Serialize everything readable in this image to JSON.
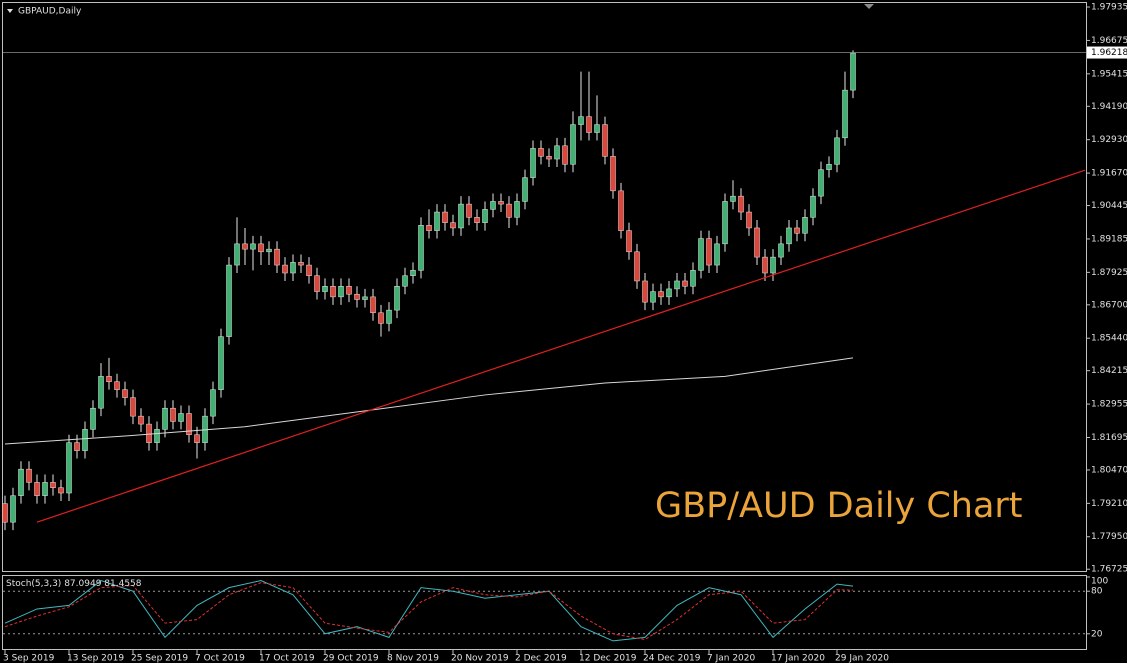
{
  "chart_data": [
    {
      "type": "candlestick",
      "title": "GBPAUD,Daily",
      "annotation": "GBP/AUD Daily Chart",
      "categories": [
        "3 Sep 2019",
        null,
        null,
        null,
        null,
        null,
        null,
        null,
        "13 Sep 2019",
        null,
        null,
        null,
        null,
        null,
        null,
        null,
        "25 Sep 2019",
        null,
        null,
        null,
        null,
        null,
        null,
        null,
        "7 Oct 2019",
        null,
        null,
        null,
        null,
        null,
        null,
        null,
        "17 Oct 2019",
        null,
        null,
        null,
        null,
        null,
        null,
        null,
        "29 Oct 2019",
        null,
        null,
        null,
        null,
        null,
        null,
        null,
        "8 Nov 2019",
        null,
        null,
        null,
        null,
        null,
        null,
        null,
        "20 Nov 2019",
        null,
        null,
        null,
        null,
        null,
        null,
        null,
        "2 Dec 2019",
        null,
        null,
        null,
        null,
        null,
        null,
        null,
        "12 Dec 2019",
        null,
        null,
        null,
        null,
        null,
        null,
        null,
        "24 Dec 2019",
        null,
        null,
        null,
        null,
        null,
        null,
        null,
        "7 Jan 2020",
        null,
        null,
        null,
        null,
        null,
        null,
        null,
        "17 Jan 2020",
        null,
        null,
        null,
        null,
        null,
        null,
        null,
        "29 Jan 2020",
        null,
        null
      ],
      "open": [
        1.792,
        1.785,
        1.795,
        1.805,
        1.8,
        1.795,
        1.8,
        1.798,
        1.796,
        1.815,
        1.812,
        1.82,
        1.828,
        1.84,
        1.838,
        1.835,
        1.832,
        1.825,
        1.822,
        1.815,
        1.82,
        1.828,
        1.823,
        1.826,
        1.818,
        1.815,
        1.825,
        1.835,
        1.855,
        1.882,
        1.89,
        1.888,
        1.89,
        1.887,
        1.888,
        1.882,
        1.879,
        1.883,
        1.882,
        1.878,
        1.872,
        1.874,
        1.87,
        1.874,
        1.871,
        1.869,
        1.87,
        1.864,
        1.86,
        1.865,
        1.874,
        1.878,
        1.88,
        1.897,
        1.895,
        1.902,
        1.898,
        1.896,
        1.905,
        1.9,
        1.898,
        1.903,
        1.906,
        1.905,
        1.9,
        1.906,
        1.915,
        1.926,
        1.923,
        1.922,
        1.927,
        1.92,
        1.935,
        1.938,
        1.932,
        1.935,
        1.923,
        1.91,
        1.895,
        1.887,
        1.876,
        1.868,
        1.872,
        1.87,
        1.873,
        1.876,
        1.874,
        1.88,
        1.892,
        1.882,
        1.89,
        1.906,
        1.908,
        1.902,
        1.896,
        1.885,
        1.879,
        1.885,
        1.89,
        1.896,
        1.894,
        1.9,
        1.908,
        1.918,
        1.92,
        1.93,
        1.948
      ],
      "high": [
        1.795,
        1.798,
        1.808,
        1.808,
        1.803,
        1.803,
        1.803,
        1.801,
        1.818,
        1.818,
        1.823,
        1.831,
        1.845,
        1.847,
        1.841,
        1.838,
        1.835,
        1.828,
        1.825,
        1.823,
        1.831,
        1.831,
        1.829,
        1.829,
        1.821,
        1.828,
        1.838,
        1.858,
        1.885,
        1.9,
        1.896,
        1.893,
        1.893,
        1.891,
        1.891,
        1.885,
        1.886,
        1.886,
        1.885,
        1.881,
        1.877,
        1.877,
        1.877,
        1.877,
        1.874,
        1.873,
        1.873,
        1.867,
        1.868,
        1.877,
        1.881,
        1.883,
        1.9,
        1.903,
        1.905,
        1.905,
        1.901,
        1.908,
        1.908,
        1.903,
        1.906,
        1.909,
        1.909,
        1.908,
        1.909,
        1.918,
        1.929,
        1.929,
        1.926,
        1.93,
        1.93,
        1.94,
        1.955,
        1.955,
        1.946,
        1.938,
        1.926,
        1.913,
        1.898,
        1.89,
        1.879,
        1.875,
        1.875,
        1.876,
        1.879,
        1.879,
        1.883,
        1.895,
        1.895,
        1.893,
        1.909,
        1.914,
        1.911,
        1.905,
        1.899,
        1.888,
        1.888,
        1.893,
        1.899,
        1.899,
        1.903,
        1.911,
        1.921,
        1.923,
        1.933,
        1.955,
        1.963
      ],
      "low": [
        1.782,
        1.782,
        1.792,
        1.797,
        1.792,
        1.792,
        1.795,
        1.793,
        1.793,
        1.809,
        1.809,
        1.817,
        1.825,
        1.835,
        1.832,
        1.829,
        1.822,
        1.819,
        1.812,
        1.812,
        1.817,
        1.82,
        1.82,
        1.815,
        1.809,
        1.812,
        1.822,
        1.832,
        1.852,
        1.879,
        1.882,
        1.88,
        1.882,
        1.882,
        1.879,
        1.876,
        1.876,
        1.879,
        1.875,
        1.869,
        1.869,
        1.867,
        1.867,
        1.868,
        1.866,
        1.866,
        1.861,
        1.855,
        1.857,
        1.862,
        1.871,
        1.875,
        1.877,
        1.892,
        1.892,
        1.895,
        1.893,
        1.893,
        1.897,
        1.895,
        1.895,
        1.9,
        1.902,
        1.896,
        1.897,
        1.903,
        1.912,
        1.92,
        1.919,
        1.919,
        1.917,
        1.917,
        1.929,
        1.929,
        1.929,
        1.92,
        1.907,
        1.892,
        1.884,
        1.873,
        1.865,
        1.865,
        1.867,
        1.867,
        1.87,
        1.871,
        1.871,
        1.877,
        1.879,
        1.879,
        1.887,
        1.903,
        1.899,
        1.893,
        1.882,
        1.876,
        1.876,
        1.882,
        1.887,
        1.891,
        1.891,
        1.897,
        1.905,
        1.915,
        1.917,
        1.927,
        1.945
      ],
      "close": [
        1.785,
        1.795,
        1.805,
        1.8,
        1.795,
        1.8,
        1.798,
        1.796,
        1.815,
        1.812,
        1.82,
        1.828,
        1.84,
        1.838,
        1.835,
        1.832,
        1.825,
        1.822,
        1.815,
        1.82,
        1.828,
        1.823,
        1.826,
        1.818,
        1.815,
        1.825,
        1.835,
        1.855,
        1.882,
        1.89,
        1.888,
        1.89,
        1.887,
        1.888,
        1.882,
        1.879,
        1.883,
        1.882,
        1.878,
        1.872,
        1.874,
        1.87,
        1.874,
        1.871,
        1.869,
        1.87,
        1.864,
        1.86,
        1.865,
        1.874,
        1.878,
        1.88,
        1.897,
        1.895,
        1.902,
        1.898,
        1.896,
        1.905,
        1.9,
        1.898,
        1.903,
        1.906,
        1.905,
        1.9,
        1.906,
        1.915,
        1.926,
        1.923,
        1.922,
        1.927,
        1.92,
        1.935,
        1.938,
        1.932,
        1.935,
        1.923,
        1.91,
        1.895,
        1.887,
        1.876,
        1.868,
        1.872,
        1.87,
        1.873,
        1.876,
        1.874,
        1.88,
        1.892,
        1.882,
        1.89,
        1.906,
        1.908,
        1.902,
        1.896,
        1.885,
        1.879,
        1.885,
        1.89,
        1.896,
        1.894,
        1.9,
        1.908,
        1.918,
        1.92,
        1.93,
        1.948,
        1.962
      ],
      "up_color": "#3cb371",
      "down_color": "#e0453a",
      "wick_color": "#e6e6e6",
      "ylim": [
        1.7662,
        1.982
      ],
      "yticks": [
        1.97935,
        1.96675,
        1.95415,
        {
          "value": 1.9419,
          "label": "1.94190"
        },
        {
          "value": 1.9293,
          "label": "1.92930"
        },
        {
          "value": 1.9167,
          "label": "1.91670"
        },
        1.90445,
        1.89185,
        1.87925,
        {
          "value": 1.867,
          "label": "1.86700"
        },
        {
          "value": 1.8544,
          "label": "1.85440"
        },
        1.84215,
        1.82955,
        1.81695,
        {
          "value": 1.8047,
          "label": "1.80470"
        },
        {
          "value": 1.7921,
          "label": "1.79210"
        },
        {
          "value": 1.7795,
          "label": "1.77950"
        },
        1.76725
      ],
      "current_price": 1.96218,
      "moving_average": {
        "color": "#d8d8d8",
        "x": [
          0,
          15,
          30,
          45,
          60,
          75,
          90,
          106
        ],
        "values": [
          1.8145,
          1.8175,
          1.821,
          1.827,
          1.833,
          1.8375,
          1.84,
          1.847
        ]
      },
      "trendline": {
        "color": "#e02020",
        "x": [
          4,
          135
        ],
        "values": [
          1.785,
          1.9178
        ]
      }
    },
    {
      "type": "line",
      "title": "Stoch(5,3,3)",
      "ylim": [
        0,
        100
      ],
      "yticks": [
        20,
        80,
        100
      ],
      "levels": [
        20,
        80
      ],
      "main": {
        "color": "#3fb8c0",
        "x": [
          0,
          4,
          8,
          12,
          16,
          20,
          24,
          28,
          32,
          36,
          40,
          44,
          48,
          52,
          56,
          60,
          64,
          68,
          72,
          76,
          80,
          84,
          88,
          92,
          96,
          100,
          104,
          106
        ],
        "values": [
          35,
          55,
          60,
          95,
          80,
          15,
          60,
          85,
          95,
          75,
          20,
          30,
          15,
          85,
          80,
          70,
          75,
          80,
          30,
          10,
          15,
          60,
          85,
          75,
          15,
          55,
          90,
          87.0949
        ]
      },
      "signal": {
        "color": "#e03030",
        "x": [
          0,
          4,
          8,
          12,
          16,
          20,
          24,
          28,
          32,
          36,
          40,
          44,
          48,
          52,
          56,
          60,
          64,
          68,
          72,
          76,
          80,
          84,
          88,
          92,
          96,
          100,
          104,
          106
        ],
        "values": [
          30,
          45,
          58,
          85,
          88,
          35,
          40,
          75,
          92,
          85,
          35,
          28,
          22,
          65,
          85,
          75,
          72,
          80,
          45,
          20,
          12,
          40,
          75,
          80,
          35,
          40,
          82,
          81.4558
        ]
      }
    }
  ]
}
